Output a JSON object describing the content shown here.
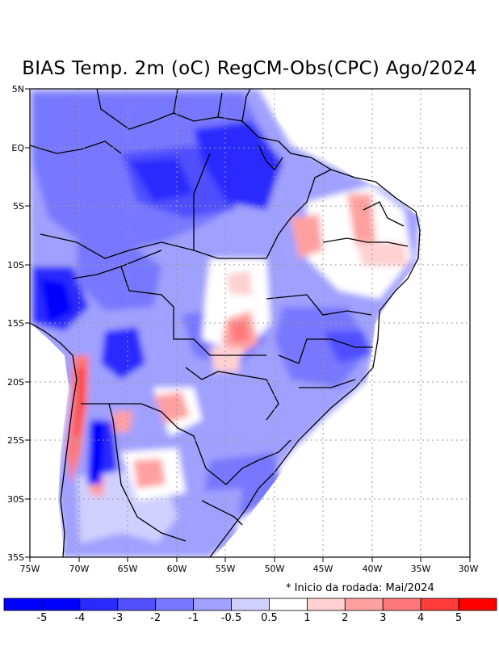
{
  "title": "BIAS Temp. 2m (oC) RegCM-Obs(CPC) Ago/2024",
  "note": "* Inicio da rodada: Mai/2024",
  "axes": {
    "lat_labels": [
      "5N",
      "EQ",
      "5S",
      "10S",
      "15S",
      "20S",
      "25S",
      "30S",
      "35S"
    ],
    "lon_labels": [
      "75W",
      "70W",
      "65W",
      "60W",
      "55W",
      "50W",
      "45W",
      "40W",
      "35W",
      "30W"
    ]
  },
  "colorbar": {
    "labels": [
      "-5",
      "-4",
      "-3",
      "-2",
      "-1",
      "-0.5",
      "0.5",
      "1",
      "2",
      "3",
      "4",
      "5"
    ],
    "colors": [
      "#0000ff",
      "#2a2aff",
      "#5050ff",
      "#7878ff",
      "#a0a0ff",
      "#d0d0ff",
      "#ffffff",
      "#ffd0d0",
      "#ffa0a0",
      "#ff7878",
      "#ff3c3c",
      "#ff0000"
    ]
  }
}
